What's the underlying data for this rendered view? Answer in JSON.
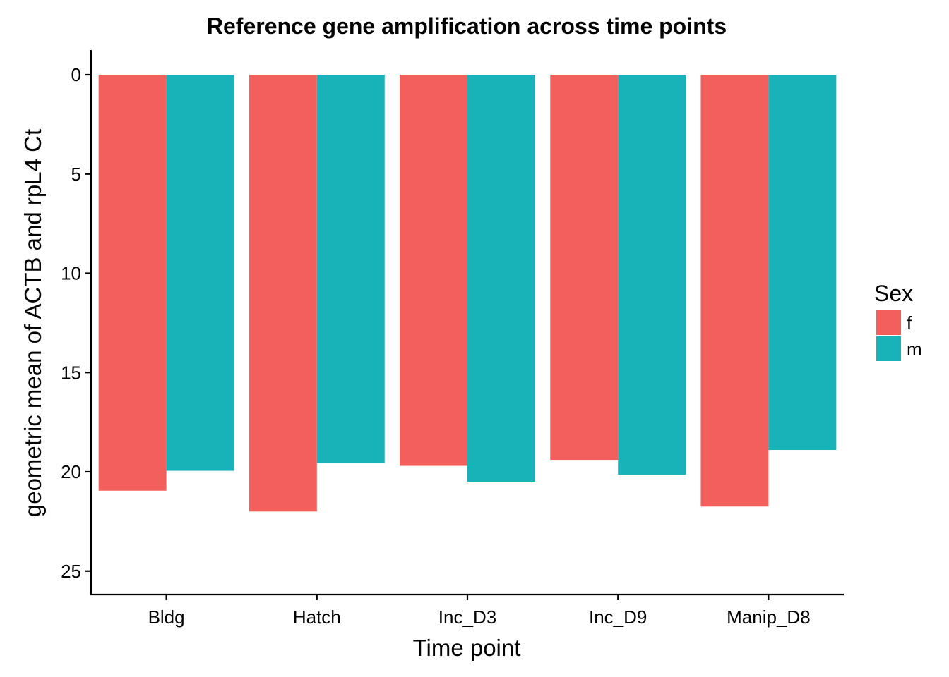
{
  "chart_data": {
    "type": "bar",
    "title": "Reference gene amplification across time points",
    "xlabel": "Time point",
    "ylabel": "geometric mean of ACTB and rpL4 Ct",
    "categories": [
      "Bldg",
      "Hatch",
      "Inc_D3",
      "Inc_D9",
      "Manip_D8"
    ],
    "series": [
      {
        "name": "f",
        "color": "#F25F5C",
        "values": [
          20.95,
          22.0,
          19.7,
          19.4,
          21.75
        ]
      },
      {
        "name": "m",
        "color": "#18B3B8",
        "values": [
          19.95,
          19.55,
          20.5,
          20.15,
          18.9
        ]
      }
    ],
    "ylim": [
      0,
      26.2
    ],
    "y_reversed": true,
    "yticks": [
      0,
      5,
      10,
      15,
      20,
      25
    ],
    "ytick_labels": [
      "0",
      "5",
      "10",
      "15",
      "20",
      "25"
    ],
    "legend": {
      "title": "Sex",
      "placement": "right"
    },
    "grid": false
  }
}
